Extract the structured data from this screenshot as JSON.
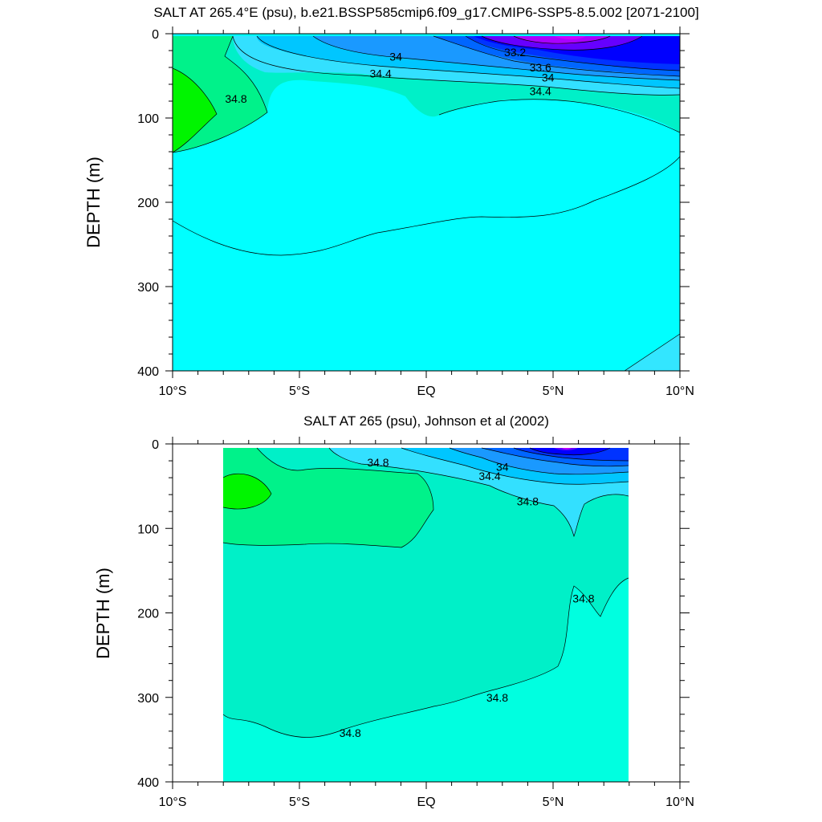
{
  "chart_data": [
    {
      "type": "contour",
      "title": "SALT AT 265.4°E (psu), b.e21.BSSP585cmip6.f09_g17.CMIP6-SSP5-8.5.002 [2071-2100]",
      "xlabel": "",
      "ylabel": "DEPTH (m)",
      "xlim": [
        -10,
        10
      ],
      "ylim": [
        400,
        0
      ],
      "x_ticks": [
        {
          "value": -10,
          "label": "10°S"
        },
        {
          "value": -5,
          "label": "5°S"
        },
        {
          "value": 0,
          "label": "EQ"
        },
        {
          "value": 5,
          "label": "5°N"
        },
        {
          "value": 10,
          "label": "10°N"
        }
      ],
      "y_ticks": [
        {
          "value": 0,
          "label": "0"
        },
        {
          "value": 100,
          "label": "100"
        },
        {
          "value": 200,
          "label": "200"
        },
        {
          "value": 300,
          "label": "300"
        },
        {
          "value": 400,
          "label": "400"
        }
      ],
      "contour_labels": [
        {
          "text": "34.8",
          "x": -7.5,
          "y": 77
        },
        {
          "text": "34",
          "x": -1.2,
          "y": 27
        },
        {
          "text": "34.4",
          "x": -1.8,
          "y": 47
        },
        {
          "text": "33.2",
          "x": 3.5,
          "y": 22
        },
        {
          "text": "33.6",
          "x": 4.5,
          "y": 40
        },
        {
          "text": "34",
          "x": 4.8,
          "y": 52
        },
        {
          "text": "34.4",
          "x": 4.5,
          "y": 68
        }
      ]
    },
    {
      "type": "contour",
      "title": "SALT AT 265 (psu), Johnson et al (2002)",
      "xlabel": "",
      "ylabel": "DEPTH (m)",
      "xlim": [
        -10,
        10
      ],
      "ylim": [
        400,
        0
      ],
      "x_ticks": [
        {
          "value": -10,
          "label": "10°S"
        },
        {
          "value": -5,
          "label": "5°S"
        },
        {
          "value": 0,
          "label": "EQ"
        },
        {
          "value": 5,
          "label": "5°N"
        },
        {
          "value": 10,
          "label": "10°N"
        }
      ],
      "y_ticks": [
        {
          "value": 0,
          "label": "0"
        },
        {
          "value": 100,
          "label": "100"
        },
        {
          "value": 200,
          "label": "200"
        },
        {
          "value": 300,
          "label": "300"
        },
        {
          "value": 400,
          "label": "400"
        }
      ],
      "contour_labels": [
        {
          "text": "34.8",
          "x": -1.9,
          "y": 22
        },
        {
          "text": "34",
          "x": 3.0,
          "y": 27
        },
        {
          "text": "34.4",
          "x": 2.5,
          "y": 38
        },
        {
          "text": "34.8",
          "x": 4.0,
          "y": 68
        },
        {
          "text": "34.8",
          "x": 6.2,
          "y": 183
        },
        {
          "text": "34.8",
          "x": 2.8,
          "y": 300
        },
        {
          "text": "34.8",
          "x": -3.0,
          "y": 342
        }
      ]
    }
  ]
}
